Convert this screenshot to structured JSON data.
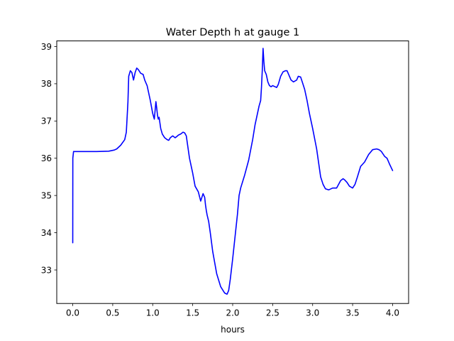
{
  "chart_data": {
    "type": "line",
    "title": "Water Depth h at gauge 1",
    "xlabel": "hours",
    "ylabel": "",
    "xlim": [
      -0.2,
      4.2
    ],
    "ylim": [
      32.1,
      39.15
    ],
    "xticks": [
      0.0,
      0.5,
      1.0,
      1.5,
      2.0,
      2.5,
      3.0,
      3.5,
      4.0
    ],
    "xtick_labels": [
      "0.0",
      "0.5",
      "1.0",
      "1.5",
      "2.0",
      "2.5",
      "3.0",
      "3.5",
      "4.0"
    ],
    "yticks": [
      33,
      34,
      35,
      36,
      37,
      38,
      39
    ],
    "ytick_labels": [
      "33",
      "34",
      "35",
      "36",
      "37",
      "38",
      "39"
    ],
    "grid": false,
    "series": [
      {
        "color": "#0000ff",
        "x": [
          0.0,
          0.001,
          0.01,
          0.1,
          0.3,
          0.45,
          0.52,
          0.55,
          0.6,
          0.65,
          0.67,
          0.69,
          0.7,
          0.72,
          0.74,
          0.76,
          0.78,
          0.8,
          0.82,
          0.85,
          0.88,
          0.9,
          0.93,
          0.95,
          0.97,
          1.0,
          1.02,
          1.04,
          1.05,
          1.06,
          1.07,
          1.08,
          1.09,
          1.1,
          1.12,
          1.15,
          1.18,
          1.2,
          1.22,
          1.25,
          1.28,
          1.3,
          1.32,
          1.35,
          1.38,
          1.4,
          1.42,
          1.44,
          1.46,
          1.48,
          1.5,
          1.53,
          1.57,
          1.6,
          1.63,
          1.65,
          1.66,
          1.67,
          1.68,
          1.7,
          1.72,
          1.75,
          1.8,
          1.85,
          1.9,
          1.93,
          1.95,
          1.97,
          2.0,
          2.03,
          2.06,
          2.08,
          2.1,
          2.15,
          2.2,
          2.25,
          2.28,
          2.3,
          2.33,
          2.35,
          2.36,
          2.37,
          2.38,
          2.39,
          2.4,
          2.42,
          2.44,
          2.46,
          2.48,
          2.5,
          2.52,
          2.55,
          2.57,
          2.6,
          2.63,
          2.66,
          2.68,
          2.7,
          2.73,
          2.76,
          2.8,
          2.82,
          2.85,
          2.87,
          2.9,
          2.93,
          2.96,
          3.0,
          3.05,
          3.1,
          3.13,
          3.16,
          3.2,
          3.25,
          3.3,
          3.35,
          3.38,
          3.4,
          3.43,
          3.46,
          3.5,
          3.53,
          3.56,
          3.6,
          3.65,
          3.7,
          3.75,
          3.8,
          3.83,
          3.86,
          3.9,
          3.93,
          3.96,
          4.0
        ],
        "values": [
          33.73,
          36.0,
          36.18,
          36.18,
          36.18,
          36.19,
          36.22,
          36.25,
          36.35,
          36.5,
          36.7,
          37.5,
          38.2,
          38.35,
          38.3,
          38.1,
          38.3,
          38.42,
          38.38,
          38.28,
          38.25,
          38.1,
          37.95,
          37.75,
          37.55,
          37.2,
          37.05,
          37.52,
          37.35,
          37.15,
          37.05,
          37.1,
          36.95,
          36.8,
          36.65,
          36.55,
          36.5,
          36.48,
          36.55,
          36.6,
          36.55,
          36.58,
          36.62,
          36.65,
          36.7,
          36.68,
          36.6,
          36.3,
          36.0,
          35.8,
          35.6,
          35.25,
          35.1,
          34.85,
          35.05,
          34.95,
          34.75,
          34.6,
          34.48,
          34.3,
          34.0,
          33.5,
          32.9,
          32.55,
          32.38,
          32.35,
          32.45,
          32.75,
          33.3,
          33.9,
          34.5,
          35.0,
          35.2,
          35.55,
          35.95,
          36.5,
          36.9,
          37.1,
          37.4,
          37.55,
          37.9,
          38.35,
          38.95,
          38.6,
          38.35,
          38.25,
          38.05,
          37.95,
          37.92,
          37.95,
          37.93,
          37.9,
          37.98,
          38.2,
          38.32,
          38.35,
          38.35,
          38.25,
          38.1,
          38.05,
          38.1,
          38.2,
          38.18,
          38.05,
          37.85,
          37.55,
          37.2,
          36.8,
          36.25,
          35.5,
          35.3,
          35.18,
          35.15,
          35.2,
          35.2,
          35.4,
          35.45,
          35.42,
          35.35,
          35.25,
          35.2,
          35.3,
          35.5,
          35.78,
          35.9,
          36.1,
          36.23,
          36.25,
          36.23,
          36.18,
          36.05,
          36.0,
          35.85,
          35.67
        ]
      }
    ]
  }
}
